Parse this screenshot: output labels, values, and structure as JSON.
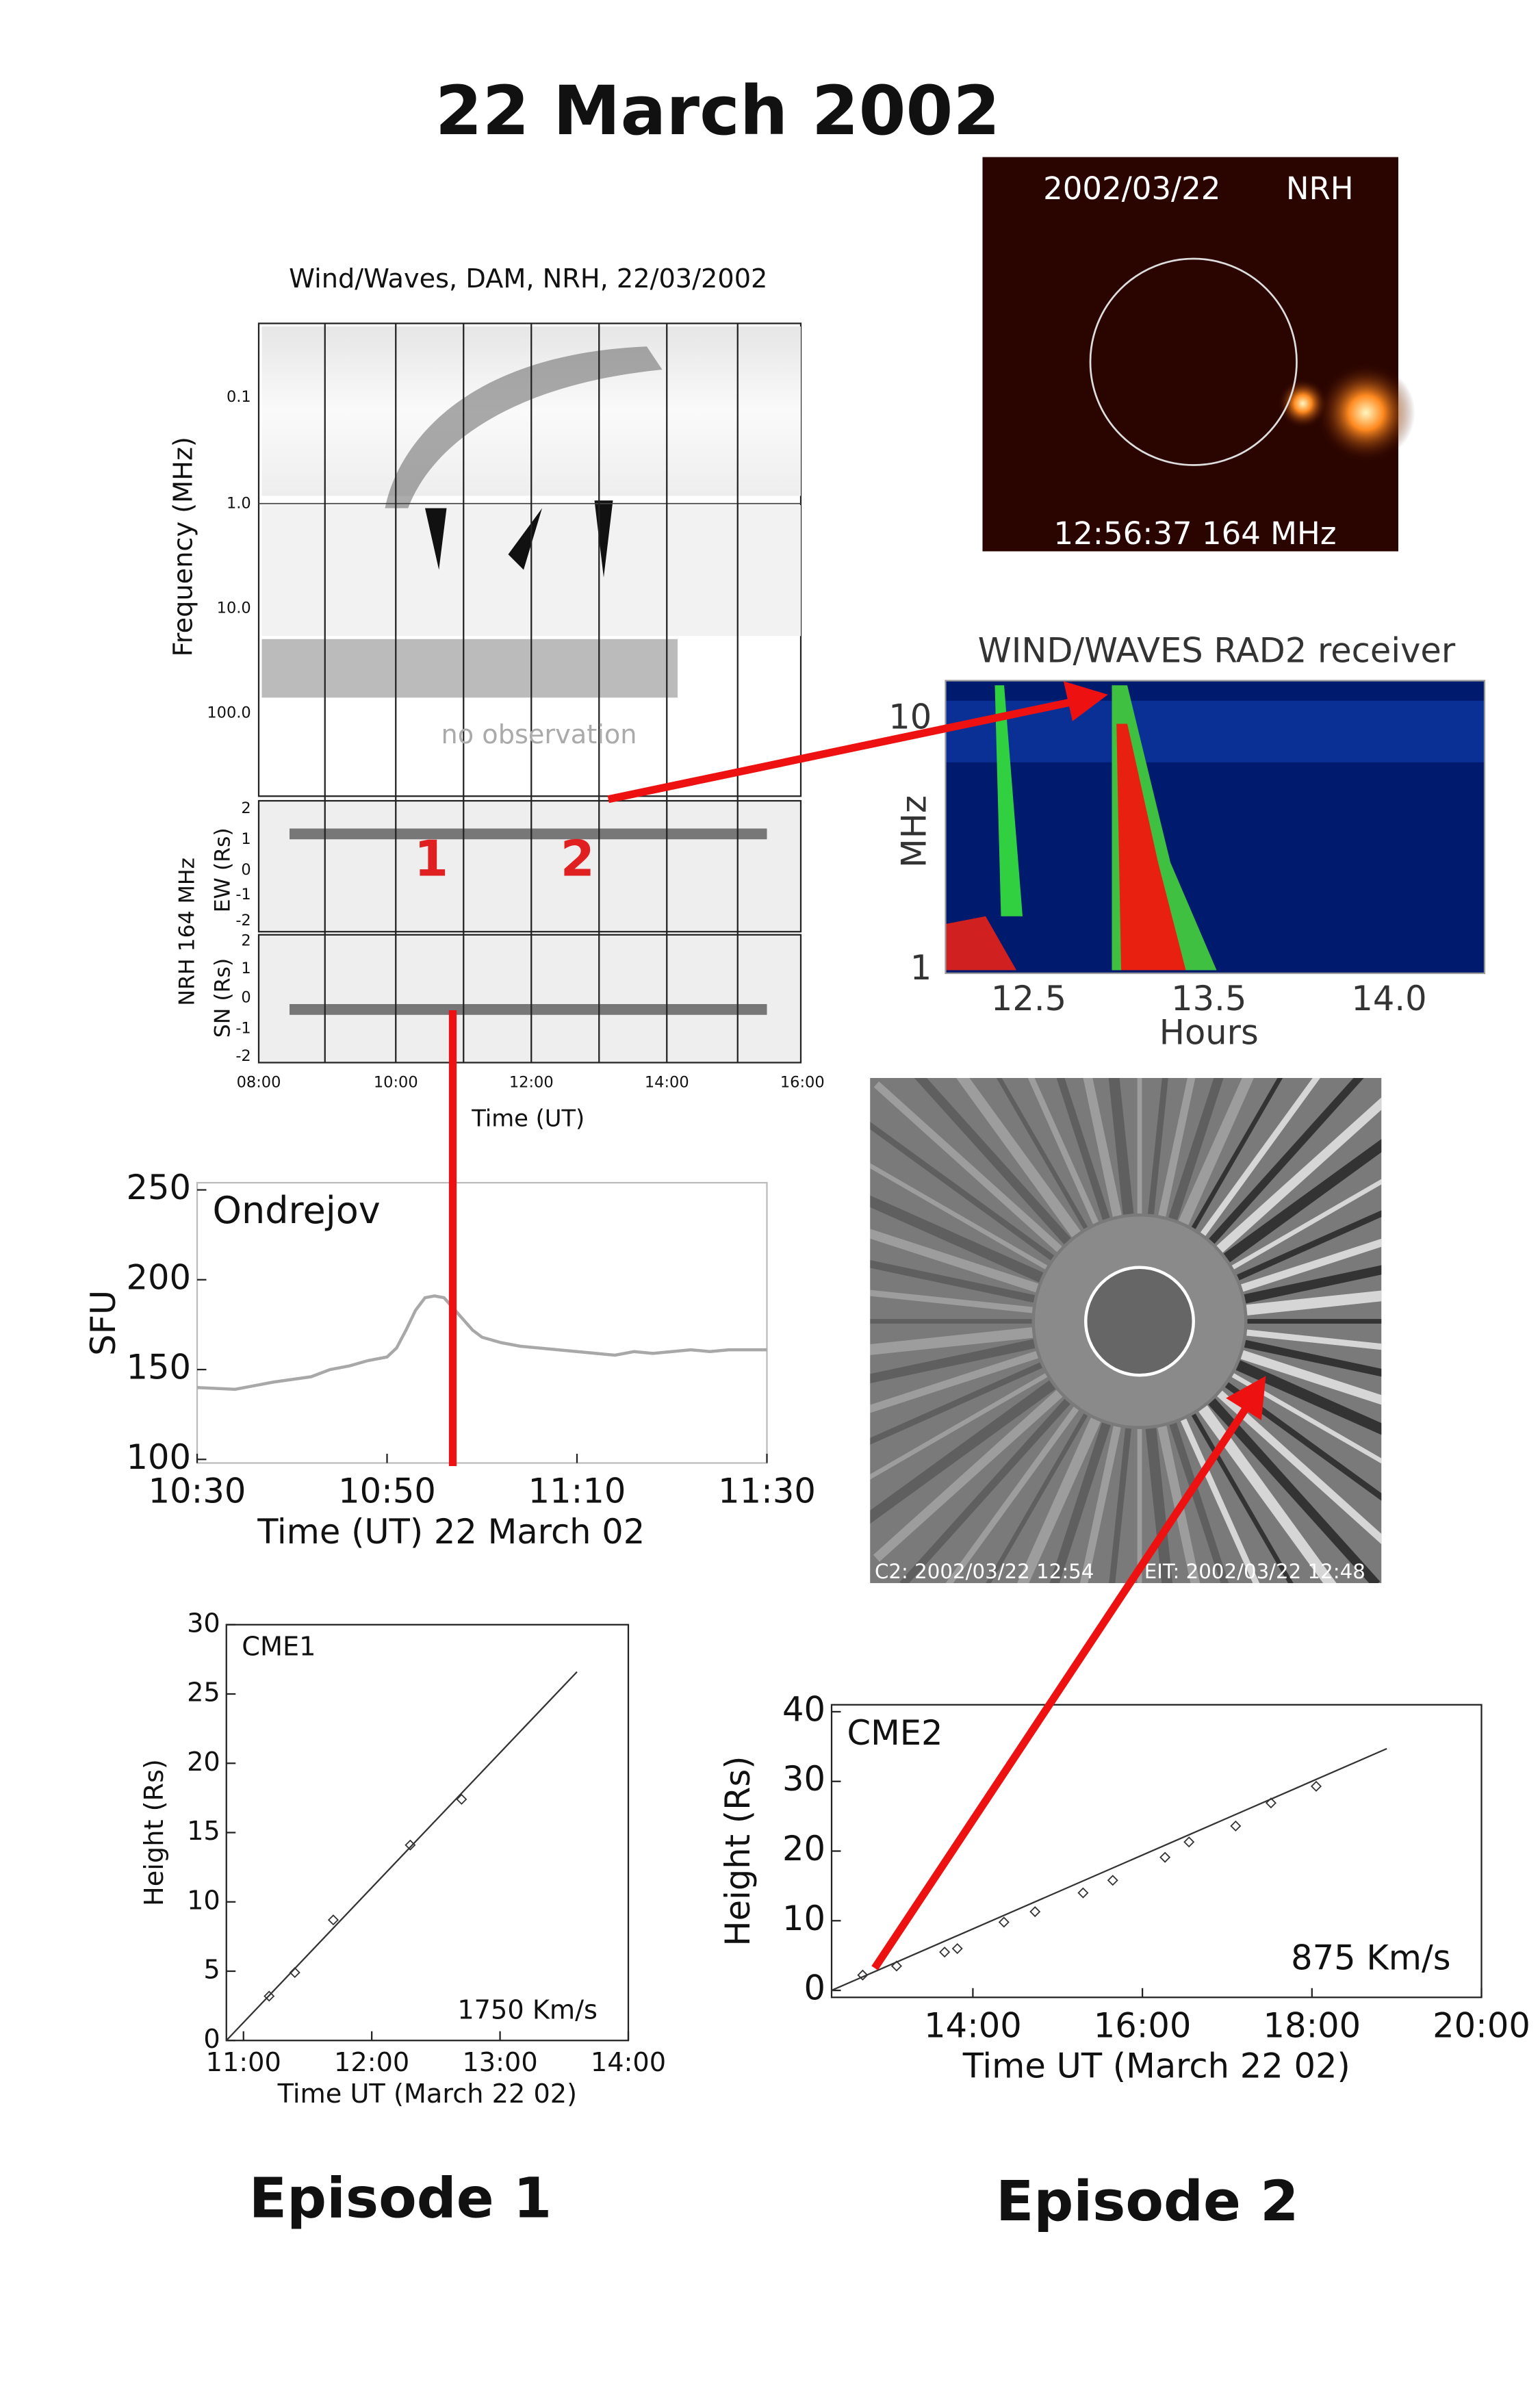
{
  "title": "22 March 2002",
  "wind_waves_panel": {
    "title": "Wind/Waves, DAM, NRH, 22/03/2002",
    "frequency_label": "Frequency (MHz)",
    "frequency_ticks": [
      "0.1",
      "1.0",
      "10.0",
      "100.0"
    ],
    "no_observation": "no observation",
    "nrh_label": "NRH 164 MHz",
    "ew_label": "EW (Rs)",
    "sn_label": "SN (Rs)",
    "ew_ticks": [
      "2",
      "1",
      "0",
      "-1",
      "-2"
    ],
    "sn_ticks": [
      "2",
      "1",
      "0",
      "-1",
      "-2"
    ],
    "time_ticks": [
      "08:00",
      "10:00",
      "12:00",
      "14:00",
      "16:00"
    ],
    "time_label": "Time (UT)",
    "episode_markers": [
      "1",
      "2"
    ]
  },
  "nrh_image": {
    "date": "2002/03/22",
    "instrument": "NRH",
    "time": "12:56:37 164 MHz"
  },
  "rad2_panel": {
    "title": "WIND/WAVES RAD2 receiver",
    "y_label": "MHz",
    "y_ticks": [
      "10",
      "1"
    ],
    "x_ticks": [
      "12.5",
      "13.5",
      "14.0"
    ],
    "x_label": "Hours"
  },
  "lasco_image": {
    "c2_label": "C2: 2002/03/22 12:54",
    "eit_label": "EIT: 2002/03/22 12:48"
  },
  "chart_data": [
    {
      "type": "line",
      "title": "Ondrejov",
      "x_label": "Time (UT) 22 March 02",
      "y_label": "SFU",
      "color": "#a8a8a8",
      "x": [
        "10:30",
        "10:34",
        "10:38",
        "10:42",
        "10:44",
        "10:46",
        "10:48",
        "10:50",
        "10:51",
        "10:52",
        "10:53",
        "10:54",
        "10:55",
        "10:56",
        "10:57",
        "10:58",
        "10:59",
        "11:00",
        "11:02",
        "11:04",
        "11:06",
        "11:08",
        "11:10",
        "11:12",
        "11:14",
        "11:16",
        "11:18",
        "11:20",
        "11:22",
        "11:24",
        "11:26",
        "11:30"
      ],
      "values": [
        140,
        139,
        143,
        146,
        150,
        152,
        155,
        157,
        162,
        172,
        183,
        190,
        191,
        190,
        184,
        178,
        172,
        168,
        165,
        163,
        162,
        161,
        160,
        159,
        158,
        160,
        159,
        160,
        161,
        160,
        161,
        161
      ],
      "xlim": [
        "10:30",
        "11:30"
      ],
      "xticks": [
        "10:30",
        "10:50",
        "11:10",
        "11:30"
      ],
      "ylim": [
        98,
        254
      ],
      "yticks": [
        100,
        150,
        200,
        250
      ]
    },
    {
      "type": "height_time",
      "title": "CME1",
      "speed_label": "1750 Km/s",
      "x_label": "Time UT (March 22 02)",
      "y_label": "Height (Rs)",
      "x": [
        "11:12",
        "11:24",
        "11:42",
        "12:18",
        "12:42"
      ],
      "values": [
        3.2,
        4.9,
        8.7,
        14.1,
        17.4
      ],
      "fit": {
        "x": [
          "10:52",
          "13:36"
        ],
        "values": [
          0,
          26.6
        ]
      },
      "xlim": [
        "10:52",
        "14:00"
      ],
      "xticks": [
        "11:00",
        "12:00",
        "13:00",
        "14:00"
      ],
      "ylim": [
        0,
        30
      ],
      "yticks": [
        0,
        5,
        10,
        15,
        20,
        25,
        30
      ]
    },
    {
      "type": "height_time",
      "title": "CME2",
      "speed_label": "875 Km/s",
      "x_label": "Time UT  (March 22 02)",
      "y_label": "Height (Rs)",
      "x": [
        "12:42",
        "13:06",
        "13:40",
        "13:49",
        "14:22",
        "14:44",
        "15:18",
        "15:39",
        "16:16",
        "16:33",
        "17:06",
        "17:31",
        "18:03"
      ],
      "values": [
        2.2,
        3.5,
        5.5,
        6.0,
        9.8,
        11.3,
        14.0,
        15.8,
        19.1,
        21.3,
        23.6,
        26.9,
        29.3
      ],
      "fit": {
        "x": [
          "12:20",
          "18:53"
        ],
        "values": [
          0,
          34.7
        ]
      },
      "xlim": [
        "12:20",
        "20:00"
      ],
      "xticks": [
        "14:00",
        "16:00",
        "18:00",
        "20:00"
      ],
      "ylim": [
        -1,
        41
      ],
      "yticks": [
        0,
        10,
        20,
        30,
        40
      ]
    }
  ],
  "episodes": [
    "Episode 1",
    "Episode 2"
  ]
}
